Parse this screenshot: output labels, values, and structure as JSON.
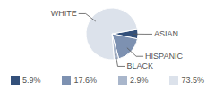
{
  "chart_data": {
    "type": "pie",
    "categories": [
      "ASIAN",
      "HISPANIC",
      "BLACK",
      "WHITE"
    ],
    "values": [
      5.9,
      17.6,
      2.9,
      73.5
    ],
    "value_labels": [
      "5.9%",
      "17.6%",
      "2.9%",
      "73.5%"
    ],
    "colors": [
      "#33507a",
      "#7d91b1",
      "#a9b6cb",
      "#dce2eb"
    ]
  }
}
